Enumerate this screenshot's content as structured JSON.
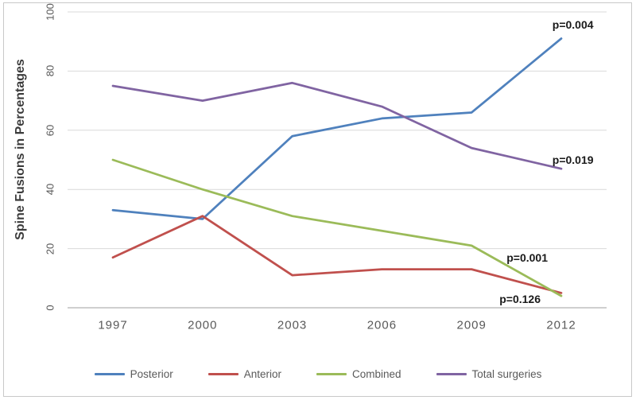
{
  "figure": {
    "background": "#ffffff",
    "border_color": "#c9c9c9"
  },
  "style": {
    "gridline_color": "#d9d9d9",
    "axis_line_color": "#bfbfbf",
    "tick_label_color": "#595959",
    "axis_title_color": "#3b3b3b",
    "annotation_color": "#1a1a1a"
  },
  "chart_data": {
    "type": "line",
    "title": "",
    "xlabel": "",
    "ylabel": "Spine Fusions in Percentages",
    "categories": [
      "1997",
      "2000",
      "2003",
      "2006",
      "2009",
      "2012"
    ],
    "ylim": [
      0,
      100
    ],
    "yticks": [
      0,
      20,
      40,
      60,
      80,
      100
    ],
    "grid": "horizontal",
    "legend_position": "bottom",
    "series": [
      {
        "name": "Posterior",
        "color": "#4F81BD",
        "values": [
          33,
          30,
          58,
          64,
          66,
          91
        ]
      },
      {
        "name": "Anterior",
        "color": "#C0504D",
        "values": [
          17,
          31,
          11,
          13,
          13,
          5
        ]
      },
      {
        "name": "Combined",
        "color": "#9BBB59",
        "values": [
          50,
          40,
          31,
          26,
          21,
          4
        ]
      },
      {
        "name": "Total surgeries",
        "color": "#8064A2",
        "values": [
          75,
          70,
          76,
          68,
          54,
          47
        ]
      }
    ],
    "annotations": [
      {
        "text": "p=0.004",
        "series": "Posterior",
        "x": 5.13,
        "y": 95.7
      },
      {
        "text": "p=0.019",
        "series": "Total surgeries",
        "x": 5.13,
        "y": 50.0
      },
      {
        "text": "p=0.001",
        "series": "Combined",
        "x": 4.62,
        "y": 16.9
      },
      {
        "text": "p=0.126",
        "series": "Anterior",
        "x": 4.54,
        "y": 3.0
      }
    ]
  }
}
